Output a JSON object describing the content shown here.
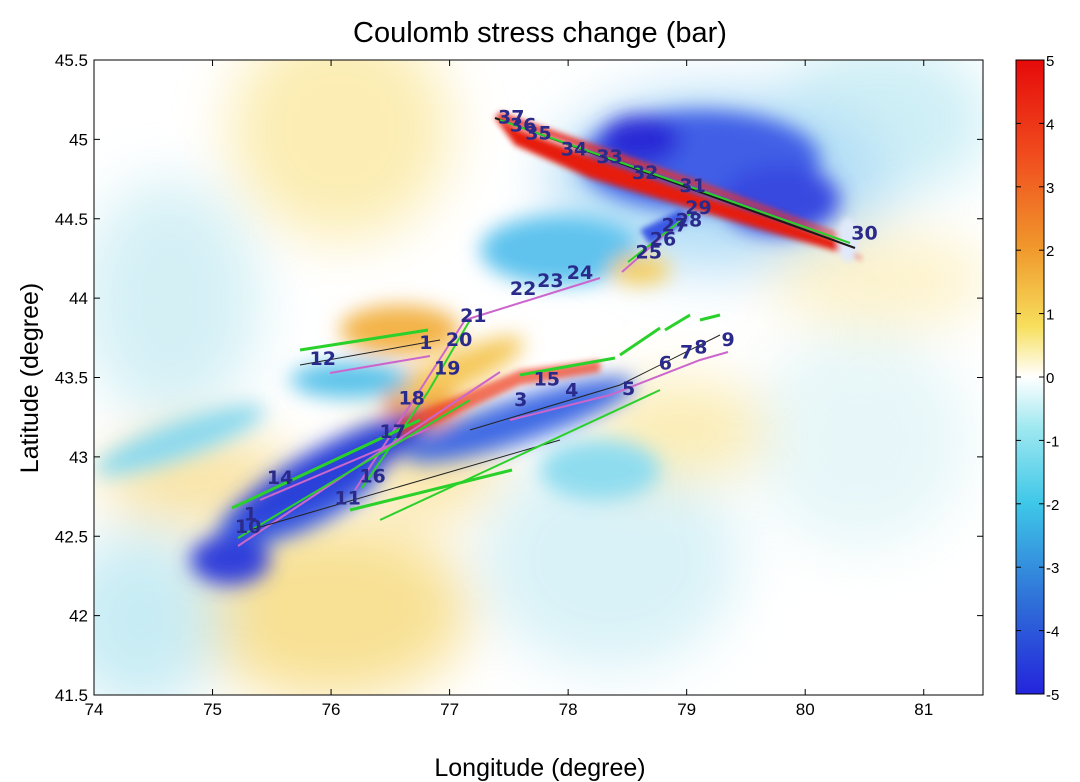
{
  "chart_data": {
    "type": "heatmap",
    "title": "Coulomb stress change (bar)",
    "xlabel": "Longitude (degree)",
    "ylabel": "Latitude  (degree)",
    "xlim": [
      74,
      81.5
    ],
    "ylim": [
      41.5,
      45.5
    ],
    "xticks": [
      74,
      75,
      76,
      77,
      78,
      79,
      80,
      81
    ],
    "yticks": [
      41.5,
      42,
      42.5,
      43,
      43.5,
      44,
      44.5,
      45,
      45.5
    ],
    "colorbar": {
      "range": [
        -5,
        5
      ],
      "ticks": [
        5,
        4,
        3,
        2,
        1,
        0,
        -1,
        -2,
        -3,
        -4,
        -5
      ],
      "colormap": "jet"
    },
    "fault_labels": [
      {
        "text": "1",
        "lon": 76.8,
        "lat": 43.68
      },
      {
        "text": "20",
        "lon": 77.08,
        "lat": 43.7
      },
      {
        "text": "21",
        "lon": 77.2,
        "lat": 43.85
      },
      {
        "text": "22",
        "lon": 77.62,
        "lat": 44.02
      },
      {
        "text": "23",
        "lon": 77.85,
        "lat": 44.07
      },
      {
        "text": "24",
        "lon": 78.1,
        "lat": 44.12
      },
      {
        "text": "19",
        "lon": 76.98,
        "lat": 43.52
      },
      {
        "text": "18",
        "lon": 76.68,
        "lat": 43.33
      },
      {
        "text": "17",
        "lon": 76.52,
        "lat": 43.12
      },
      {
        "text": "16",
        "lon": 76.35,
        "lat": 42.84
      },
      {
        "text": "15",
        "lon": 77.82,
        "lat": 43.45
      },
      {
        "text": "3",
        "lon": 77.6,
        "lat": 43.32
      },
      {
        "text": "4",
        "lon": 78.03,
        "lat": 43.38
      },
      {
        "text": "5",
        "lon": 78.51,
        "lat": 43.39
      },
      {
        "text": "6",
        "lon": 78.82,
        "lat": 43.55
      },
      {
        "text": "7",
        "lon": 79.0,
        "lat": 43.62
      },
      {
        "text": "8",
        "lon": 79.12,
        "lat": 43.65
      },
      {
        "text": "9",
        "lon": 79.35,
        "lat": 43.7
      },
      {
        "text": "12",
        "lon": 75.93,
        "lat": 43.58
      },
      {
        "text": "14",
        "lon": 75.57,
        "lat": 42.83
      },
      {
        "text": "11",
        "lon": 76.14,
        "lat": 42.7
      },
      {
        "text": "1",
        "lon": 75.32,
        "lat": 42.6
      },
      {
        "text": "10",
        "lon": 75.3,
        "lat": 42.52
      },
      {
        "text": "25",
        "lon": 78.68,
        "lat": 44.25
      },
      {
        "text": "26",
        "lon": 78.8,
        "lat": 44.33
      },
      {
        "text": "27",
        "lon": 78.9,
        "lat": 44.42
      },
      {
        "text": "28",
        "lon": 79.02,
        "lat": 44.45
      },
      {
        "text": "29",
        "lon": 79.1,
        "lat": 44.53
      },
      {
        "text": "30",
        "lon": 80.5,
        "lat": 44.37
      },
      {
        "text": "31",
        "lon": 79.05,
        "lat": 44.67
      },
      {
        "text": "32",
        "lon": 78.65,
        "lat": 44.75
      },
      {
        "text": "33",
        "lon": 78.35,
        "lat": 44.85
      },
      {
        "text": "34",
        "lon": 78.05,
        "lat": 44.9
      },
      {
        "text": "35",
        "lon": 77.75,
        "lat": 45.0
      },
      {
        "text": "36",
        "lon": 77.62,
        "lat": 45.05
      },
      {
        "text": "37",
        "lon": 77.52,
        "lat": 45.1
      }
    ]
  }
}
